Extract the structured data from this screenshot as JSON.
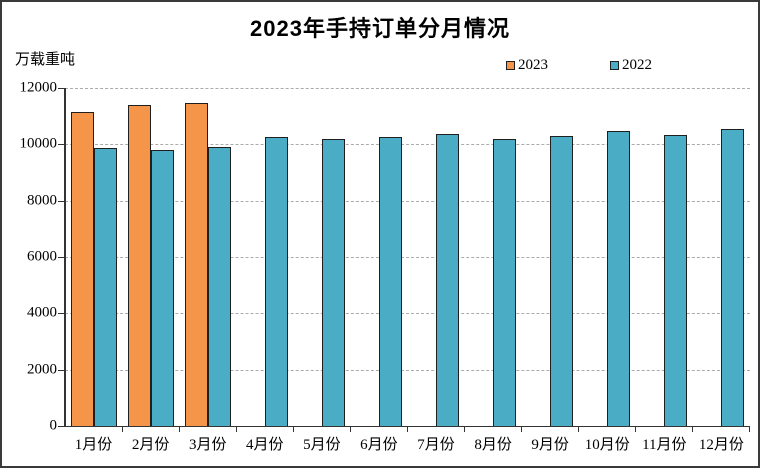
{
  "chart_data": {
    "type": "bar",
    "title": "2023年手持订单分月情况",
    "y_unit_label": "万载重吨",
    "xlabel": "",
    "ylabel": "万载重吨",
    "categories": [
      "1月份",
      "2月份",
      "3月份",
      "4月份",
      "5月份",
      "6月份",
      "7月份",
      "8月份",
      "9月份",
      "10月份",
      "11月份",
      "12月份"
    ],
    "series": [
      {
        "name": "2023",
        "color": "#F5954A",
        "values": [
          11152,
          11403,
          11452,
          null,
          null,
          null,
          null,
          null,
          null,
          null,
          null,
          null
        ]
      },
      {
        "name": "2022",
        "color": "#4BACC6",
        "values": [
          9860,
          9790,
          9910,
          10247,
          10174,
          10274,
          10366,
          10206,
          10312,
          10477,
          10343,
          10557
        ]
      }
    ],
    "ylim": [
      0,
      12000
    ],
    "ytick_interval": 2000,
    "ytick_labels": [
      "0",
      "2000",
      "4000",
      "6000",
      "8000",
      "10000",
      "12000"
    ],
    "grid": "horizontal-dashed",
    "legend_position": "top-right"
  },
  "colors": {
    "series_2023": "#F5954A",
    "series_2022": "#4BACC6",
    "bar_border": "#1F1F1F",
    "gridline": "#ABABAB",
    "axis": "#333333",
    "text": "#000000",
    "background": "#FFFFFF",
    "frame_border": "#3A3A3A"
  }
}
